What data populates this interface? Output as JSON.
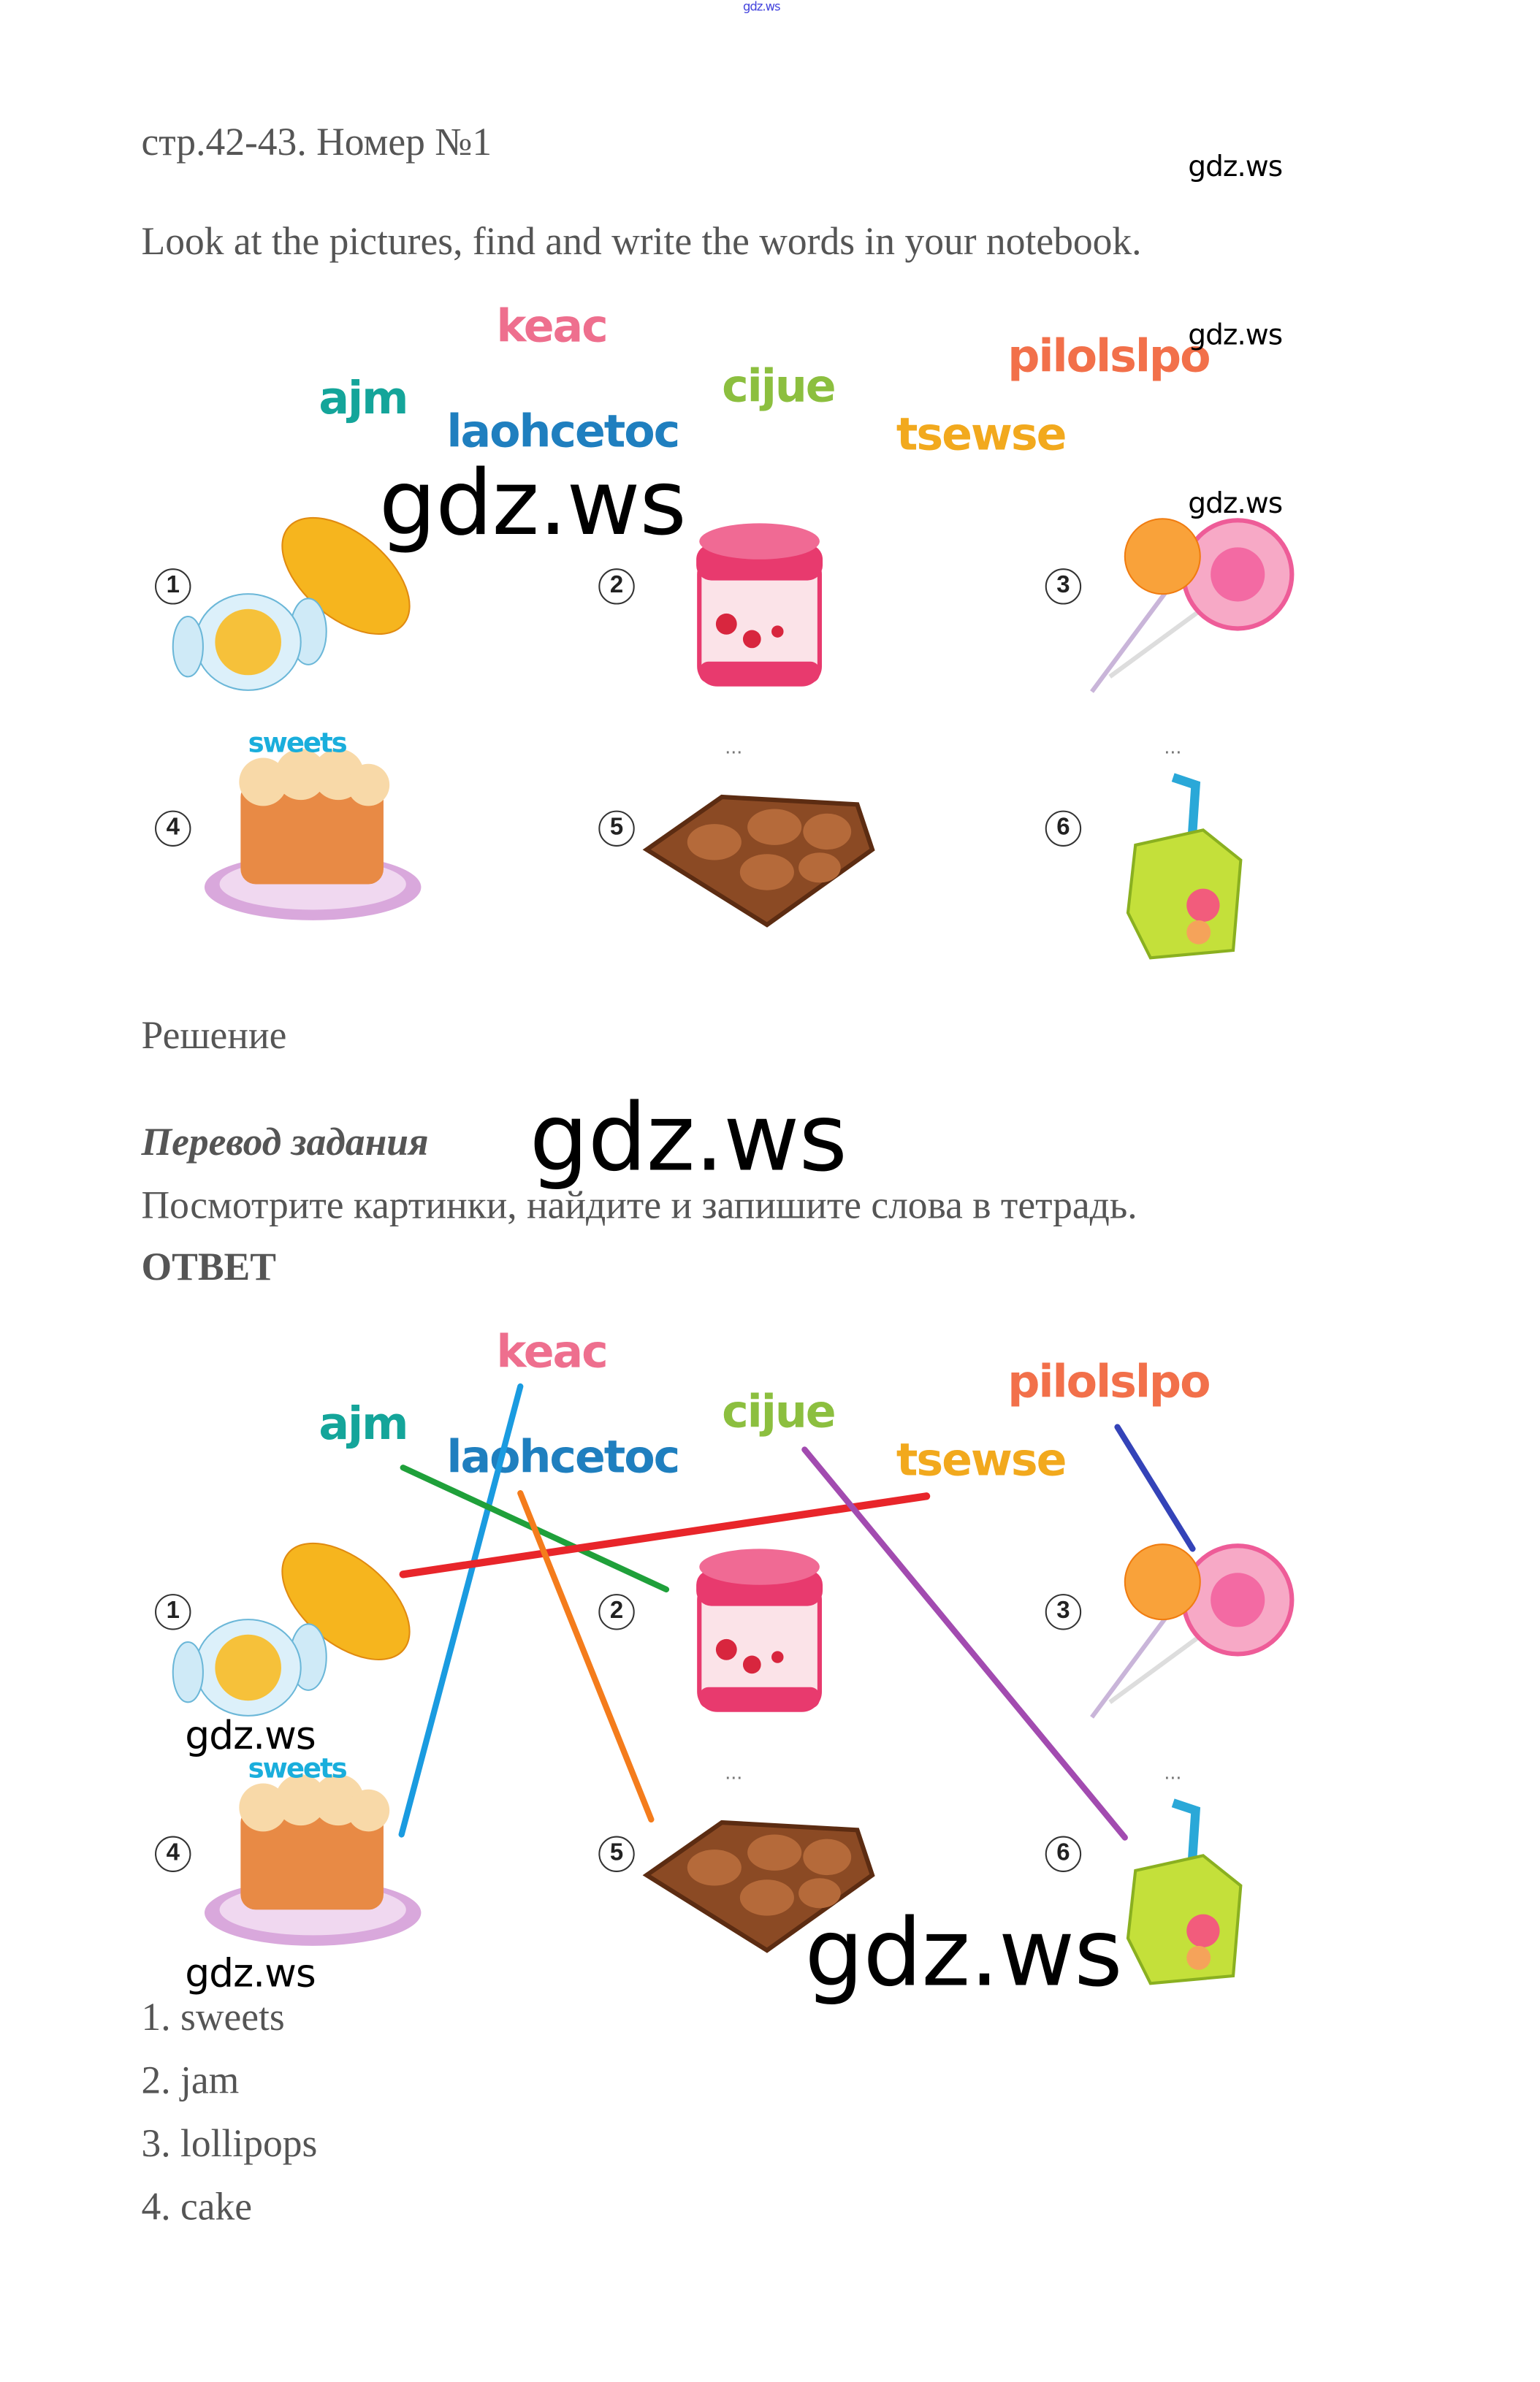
{
  "watermark_top": "gdz.ws",
  "watermark": "gdz.ws",
  "title": "стр.42-43. Номер №1",
  "instruction": "Look at the pictures, find and write the words in your notebook.",
  "picture": {
    "words": [
      {
        "text": "keac",
        "color": "#ee6f8e"
      },
      {
        "text": "ajm",
        "color": "#14a59a"
      },
      {
        "text": "laohcetoc",
        "color": "#1f7fbf"
      },
      {
        "text": "cijue",
        "color": "#8cbf3f"
      },
      {
        "text": "pilolslpo",
        "color": "#f2704a"
      },
      {
        "text": "tsewse",
        "color": "#f2a91d"
      }
    ],
    "numbers": [
      "1",
      "2",
      "3",
      "4",
      "5",
      "6"
    ],
    "example_word": "sweets",
    "blank": "..."
  },
  "solution_heading": "Решение",
  "translation_heading": "Перевод задания",
  "translation": "Посмотрите картинки, найдите и запишите слова в тетрадь.",
  "answer_heading": "ОТВЕТ",
  "answer_lines": [
    {
      "from": "keac",
      "to": "4",
      "color": "#1a9be0"
    },
    {
      "from": "ajm",
      "to": "2",
      "color": "#1fa03a"
    },
    {
      "from": "tsewse",
      "to": "1",
      "color": "#e8252a"
    },
    {
      "from": "laohcetoc",
      "to": "5",
      "color": "#f47c1c"
    },
    {
      "from": "cijue",
      "to": "6",
      "color": "#a24bb0"
    },
    {
      "from": "pilolslpo",
      "to": "3",
      "color": "#3443b8"
    }
  ],
  "answers": [
    "1. sweets",
    "2. jam",
    "3. lollipops",
    "4. cake"
  ]
}
